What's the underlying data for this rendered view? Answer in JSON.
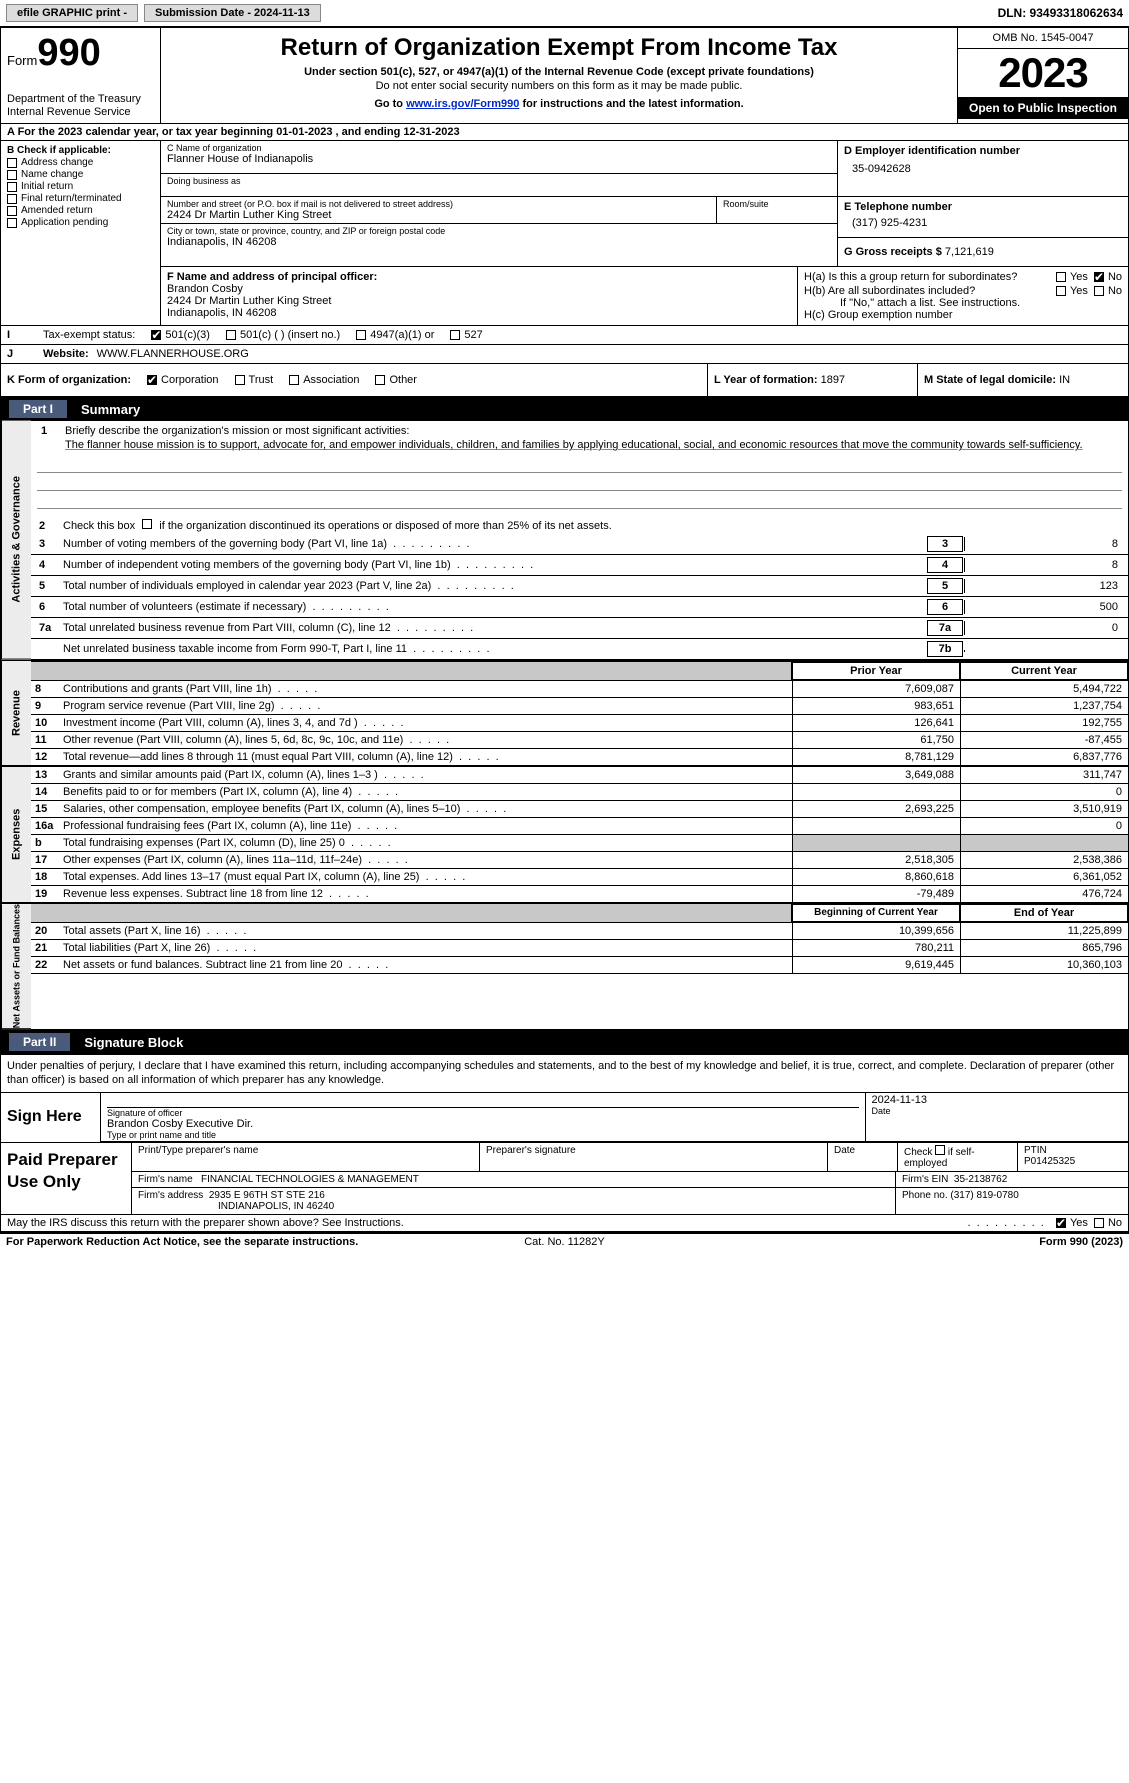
{
  "topbar": {
    "efile": "efile GRAPHIC print -",
    "submission": "Submission Date - 2024-11-13",
    "dln": "DLN: 93493318062634"
  },
  "header": {
    "form_prefix": "Form",
    "form_number": "990",
    "title": "Return of Organization Exempt From Income Tax",
    "subtitle": "Under section 501(c), 527, or 4947(a)(1) of the Internal Revenue Code (except private foundations)",
    "warning": "Do not enter social security numbers on this form as it may be made public.",
    "goto_pre": "Go to ",
    "goto_link": "www.irs.gov/Form990",
    "goto_post": " for instructions and the latest information.",
    "dept": "Department of the Treasury\nInternal Revenue Service",
    "omb": "OMB No. 1545-0047",
    "year": "2023",
    "inspection": "Open to Public Inspection"
  },
  "period": {
    "text_a": "A For the 2023 calendar year, or tax year beginning 01-01-2023",
    "text_b": ", and ending 12-31-2023"
  },
  "boxB": {
    "header": "B Check if applicable:",
    "items": [
      "Address change",
      "Name change",
      "Initial return",
      "Final return/terminated",
      "Amended return",
      "Application pending"
    ]
  },
  "boxC": {
    "name_label": "C Name of organization",
    "name": "Flanner House of Indianapolis",
    "dba_label": "Doing business as",
    "dba": "",
    "street_label": "Number and street (or P.O. box if mail is not delivered to street address)",
    "street": "2424 Dr Martin Luther King Street",
    "room_label": "Room/suite",
    "room": "",
    "city_label": "City or town, state or province, country, and ZIP or foreign postal code",
    "city": "Indianapolis, IN  46208"
  },
  "boxD": {
    "label": "D Employer identification number",
    "value": "35-0942628"
  },
  "boxE": {
    "label": "E Telephone number",
    "value": "(317) 925-4231"
  },
  "boxG": {
    "label": "G Gross receipts $",
    "value": "7,121,619"
  },
  "boxF": {
    "label": "F Name and address of principal officer:",
    "name": "Brandon Cosby",
    "addr1": "2424 Dr Martin Luther King Street",
    "addr2": "Indianapolis, IN  46208"
  },
  "boxH": {
    "a_label": "H(a)  Is this a group return for subordinates?",
    "b_label": "H(b)  Are all subordinates included?",
    "b_note": "If \"No,\" attach a list. See instructions.",
    "c_label": "H(c)  Group exemption number",
    "yes": "Yes",
    "no": "No"
  },
  "boxI": {
    "label": "Tax-exempt status:",
    "opts": [
      "501(c)(3)",
      "501(c) (  ) (insert no.)",
      "4947(a)(1) or",
      "527"
    ]
  },
  "boxJ": {
    "label": "Website:",
    "value": "WWW.FLANNERHOUSE.ORG"
  },
  "boxK": {
    "label": "K Form of organization:",
    "opts": [
      "Corporation",
      "Trust",
      "Association",
      "Other"
    ]
  },
  "boxL": {
    "label": "L Year of formation:",
    "value": "1897"
  },
  "boxM": {
    "label": "M State of legal domicile:",
    "value": "IN"
  },
  "parts": {
    "p1_tab": "Part I",
    "p1_title": "Summary",
    "p2_tab": "Part II",
    "p2_title": "Signature Block"
  },
  "vtabs": {
    "gov": "Activities & Governance",
    "rev": "Revenue",
    "exp": "Expenses",
    "net": "Net Assets or Fund Balances"
  },
  "summary": {
    "l1_label": "Briefly describe the organization's mission or most significant activities:",
    "l1_text": "The flanner house mission is to support, advocate for, and empower individuals, children, and families by applying educational, social, and economic resources that move the community towards self-sufficiency.",
    "l2": "Check this box       if the organization discontinued its operations or disposed of more than 25% of its net assets.",
    "lines_gov": [
      {
        "n": "3",
        "t": "Number of voting members of the governing body (Part VI, line 1a)",
        "box": "3",
        "v": "8"
      },
      {
        "n": "4",
        "t": "Number of independent voting members of the governing body (Part VI, line 1b)",
        "box": "4",
        "v": "8"
      },
      {
        "n": "5",
        "t": "Total number of individuals employed in calendar year 2023 (Part V, line 2a)",
        "box": "5",
        "v": "123"
      },
      {
        "n": "6",
        "t": "Total number of volunteers (estimate if necessary)",
        "box": "6",
        "v": "500"
      },
      {
        "n": "7a",
        "t": "Total unrelated business revenue from Part VIII, column (C), line 12",
        "box": "7a",
        "v": "0"
      },
      {
        "n": "",
        "t": "Net unrelated business taxable income from Form 990-T, Part I, line 11",
        "box": "7b",
        "v": ""
      }
    ],
    "col_hdrs": {
      "prior": "Prior Year",
      "current": "Current Year",
      "begin": "Beginning of Current Year",
      "end": "End of Year"
    },
    "lines_rev": [
      {
        "n": "8",
        "t": "Contributions and grants (Part VIII, line 1h)",
        "p": "7,609,087",
        "c": "5,494,722"
      },
      {
        "n": "9",
        "t": "Program service revenue (Part VIII, line 2g)",
        "p": "983,651",
        "c": "1,237,754"
      },
      {
        "n": "10",
        "t": "Investment income (Part VIII, column (A), lines 3, 4, and 7d )",
        "p": "126,641",
        "c": "192,755"
      },
      {
        "n": "11",
        "t": "Other revenue (Part VIII, column (A), lines 5, 6d, 8c, 9c, 10c, and 11e)",
        "p": "61,750",
        "c": "-87,455"
      },
      {
        "n": "12",
        "t": "Total revenue—add lines 8 through 11 (must equal Part VIII, column (A), line 12)",
        "p": "8,781,129",
        "c": "6,837,776"
      }
    ],
    "lines_exp": [
      {
        "n": "13",
        "t": "Grants and similar amounts paid (Part IX, column (A), lines 1–3 )",
        "p": "3,649,088",
        "c": "311,747"
      },
      {
        "n": "14",
        "t": "Benefits paid to or for members (Part IX, column (A), line 4)",
        "p": "",
        "c": "0"
      },
      {
        "n": "15",
        "t": "Salaries, other compensation, employee benefits (Part IX, column (A), lines 5–10)",
        "p": "2,693,225",
        "c": "3,510,919"
      },
      {
        "n": "16a",
        "t": "Professional fundraising fees (Part IX, column (A), line 11e)",
        "p": "",
        "c": "0"
      },
      {
        "n": "b",
        "t": "Total fundraising expenses (Part IX, column (D), line 25) 0",
        "p": "shaded",
        "c": "shaded"
      },
      {
        "n": "17",
        "t": "Other expenses (Part IX, column (A), lines 11a–11d, 11f–24e)",
        "p": "2,518,305",
        "c": "2,538,386"
      },
      {
        "n": "18",
        "t": "Total expenses. Add lines 13–17 (must equal Part IX, column (A), line 25)",
        "p": "8,860,618",
        "c": "6,361,052"
      },
      {
        "n": "19",
        "t": "Revenue less expenses. Subtract line 18 from line 12",
        "p": "-79,489",
        "c": "476,724"
      }
    ],
    "lines_net": [
      {
        "n": "20",
        "t": "Total assets (Part X, line 16)",
        "p": "10,399,656",
        "c": "11,225,899"
      },
      {
        "n": "21",
        "t": "Total liabilities (Part X, line 26)",
        "p": "780,211",
        "c": "865,796"
      },
      {
        "n": "22",
        "t": "Net assets or fund balances. Subtract line 21 from line 20",
        "p": "9,619,445",
        "c": "10,360,103"
      }
    ]
  },
  "sig": {
    "declaration": "Under penalties of perjury, I declare that I have examined this return, including accompanying schedules and statements, and to the best of my knowledge and belief, it is true, correct, and complete. Declaration of preparer (other than officer) is based on all information of which preparer has any knowledge.",
    "sign_here": "Sign Here",
    "sig_officer_label": "Signature of officer",
    "date_label": "Date",
    "officer_name": "Brandon Cosby  Executive Dir.",
    "name_title_label": "Type or print name and title",
    "sig_date": "2024-11-13"
  },
  "prep": {
    "title": "Paid Preparer Use Only",
    "print_label": "Print/Type preparer's name",
    "sig_label": "Preparer's signature",
    "date_label": "Date",
    "check_label": "Check        if self-employed",
    "ptin_label": "PTIN",
    "ptin": "P01425325",
    "firm_name_label": "Firm's name",
    "firm_name": "FINANCIAL TECHNOLOGIES & MANAGEMENT",
    "firm_ein_label": "Firm's EIN",
    "firm_ein": "35-2138762",
    "firm_addr_label": "Firm's address",
    "firm_addr1": "2935 E 96TH ST STE 216",
    "firm_addr2": "INDIANAPOLIS, IN  46240",
    "phone_label": "Phone no.",
    "phone": "(317) 819-0780"
  },
  "footer": {
    "discuss": "May the IRS discuss this return with the preparer shown above? See Instructions.",
    "yes": "Yes",
    "no": "No",
    "paperwork": "For Paperwork Reduction Act Notice, see the separate instructions.",
    "catno": "Cat. No. 11282Y",
    "formid": "Form 990 (2023)"
  }
}
